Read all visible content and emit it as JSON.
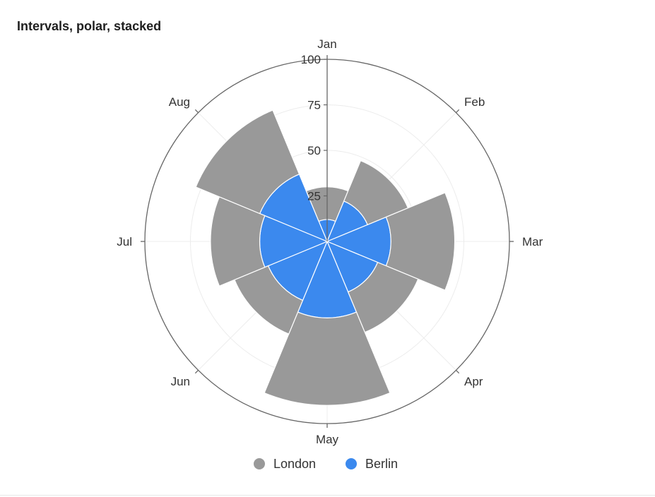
{
  "chart_data": {
    "type": "bar",
    "polar": true,
    "stacked": true,
    "title": "Intervals, polar, stacked",
    "categories": [
      "Jan",
      "Feb",
      "Mar",
      "Apr",
      "May",
      "Jun",
      "Jul",
      "Aug"
    ],
    "radial_ticks": [
      "25",
      "50",
      "75",
      "100"
    ],
    "rmax": 100,
    "series": [
      {
        "name": "Berlin",
        "color": "#3b89ee",
        "values": [
          12,
          24,
          35,
          30,
          42,
          35,
          37,
          40
        ]
      },
      {
        "name": "London",
        "color": "#999999",
        "values": [
          18,
          24,
          35,
          24,
          48,
          20,
          27,
          38
        ]
      }
    ],
    "legend": {
      "position": "bottom",
      "items": [
        {
          "name": "London",
          "color": "#999999"
        },
        {
          "name": "Berlin",
          "color": "#3b89ee"
        }
      ]
    },
    "grid": true
  }
}
